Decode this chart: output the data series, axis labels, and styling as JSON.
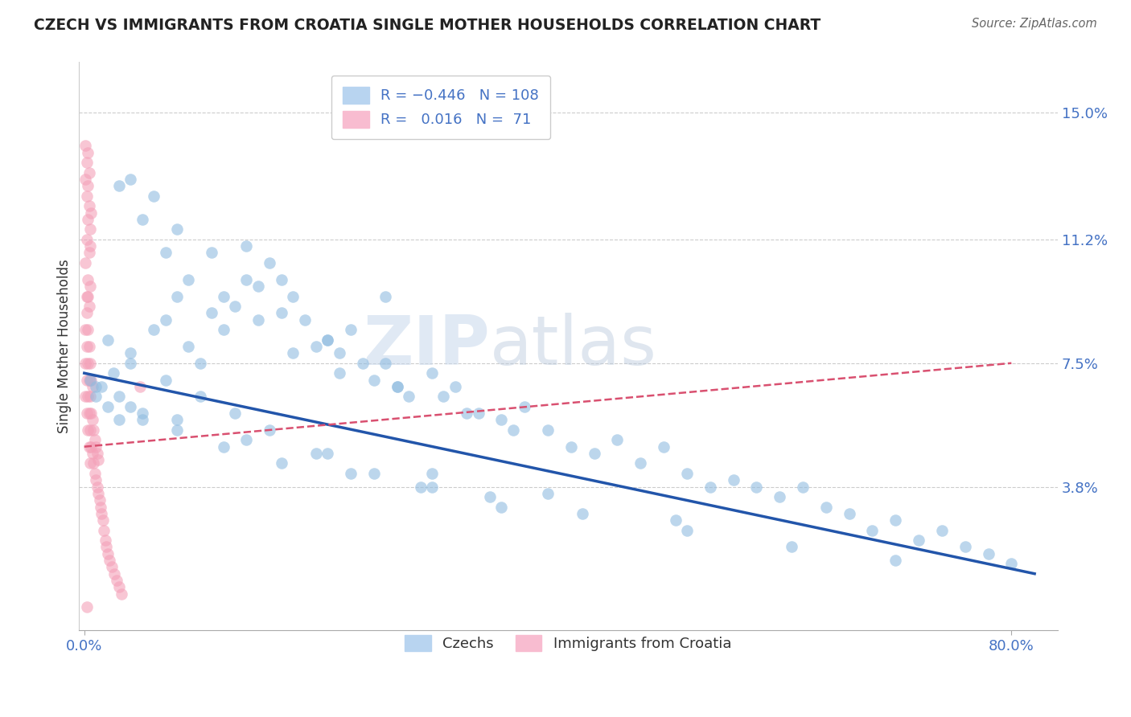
{
  "title": "CZECH VS IMMIGRANTS FROM CROATIA SINGLE MOTHER HOUSEHOLDS CORRELATION CHART",
  "source": "Source: ZipAtlas.com",
  "ylabel": "Single Mother Households",
  "y_ticks": [
    0.038,
    0.075,
    0.112,
    0.15
  ],
  "y_tick_labels": [
    "3.8%",
    "7.5%",
    "11.2%",
    "15.0%"
  ],
  "xlim": [
    -0.005,
    0.84
  ],
  "ylim": [
    -0.005,
    0.165
  ],
  "watermark_zip": "ZIP",
  "watermark_atlas": "atlas",
  "czechs_color": "#90bce0",
  "croatia_color": "#f4a0b8",
  "czechs_line_color": "#2255aa",
  "croatia_line_color": "#d95070",
  "tick_color": "#4472c4",
  "grid_color": "#cccccc",
  "czechs_line_x0": 0.0,
  "czechs_line_x1": 0.82,
  "czechs_line_y0": 0.072,
  "czechs_line_y1": 0.012,
  "croatia_line_x0": 0.0,
  "croatia_line_x1": 0.8,
  "croatia_line_y0": 0.05,
  "croatia_line_y1": 0.075,
  "czechs_x": [
    0.005,
    0.01,
    0.015,
    0.02,
    0.025,
    0.03,
    0.04,
    0.05,
    0.06,
    0.07,
    0.08,
    0.09,
    0.1,
    0.11,
    0.12,
    0.13,
    0.14,
    0.15,
    0.16,
    0.17,
    0.18,
    0.19,
    0.2,
    0.21,
    0.22,
    0.23,
    0.24,
    0.25,
    0.26,
    0.27,
    0.28,
    0.3,
    0.32,
    0.34,
    0.36,
    0.38,
    0.4,
    0.42,
    0.44,
    0.46,
    0.48,
    0.5,
    0.52,
    0.54,
    0.56,
    0.58,
    0.6,
    0.62,
    0.64,
    0.66,
    0.68,
    0.7,
    0.72,
    0.74,
    0.76,
    0.78,
    0.8,
    0.03,
    0.05,
    0.07,
    0.09,
    0.12,
    0.15,
    0.18,
    0.22,
    0.27,
    0.33,
    0.04,
    0.06,
    0.08,
    0.11,
    0.14,
    0.17,
    0.21,
    0.26,
    0.31,
    0.37,
    0.02,
    0.04,
    0.07,
    0.1,
    0.13,
    0.16,
    0.2,
    0.25,
    0.3,
    0.36,
    0.03,
    0.05,
    0.08,
    0.12,
    0.17,
    0.23,
    0.29,
    0.35,
    0.43,
    0.52,
    0.61,
    0.7,
    0.01,
    0.04,
    0.08,
    0.14,
    0.21,
    0.3,
    0.4,
    0.51
  ],
  "czechs_y": [
    0.07,
    0.065,
    0.068,
    0.062,
    0.072,
    0.065,
    0.078,
    0.058,
    0.085,
    0.088,
    0.095,
    0.08,
    0.075,
    0.09,
    0.085,
    0.092,
    0.11,
    0.098,
    0.105,
    0.1,
    0.095,
    0.088,
    0.08,
    0.082,
    0.078,
    0.085,
    0.075,
    0.07,
    0.095,
    0.068,
    0.065,
    0.072,
    0.068,
    0.06,
    0.058,
    0.062,
    0.055,
    0.05,
    0.048,
    0.052,
    0.045,
    0.05,
    0.042,
    0.038,
    0.04,
    0.038,
    0.035,
    0.038,
    0.032,
    0.03,
    0.025,
    0.028,
    0.022,
    0.025,
    0.02,
    0.018,
    0.015,
    0.128,
    0.118,
    0.108,
    0.1,
    0.095,
    0.088,
    0.078,
    0.072,
    0.068,
    0.06,
    0.13,
    0.125,
    0.115,
    0.108,
    0.1,
    0.09,
    0.082,
    0.075,
    0.065,
    0.055,
    0.082,
    0.075,
    0.07,
    0.065,
    0.06,
    0.055,
    0.048,
    0.042,
    0.038,
    0.032,
    0.058,
    0.06,
    0.055,
    0.05,
    0.045,
    0.042,
    0.038,
    0.035,
    0.03,
    0.025,
    0.02,
    0.016,
    0.068,
    0.062,
    0.058,
    0.052,
    0.048,
    0.042,
    0.036,
    0.028
  ],
  "croatia_x": [
    0.001,
    0.001,
    0.001,
    0.002,
    0.002,
    0.002,
    0.002,
    0.003,
    0.003,
    0.003,
    0.003,
    0.003,
    0.004,
    0.004,
    0.004,
    0.004,
    0.005,
    0.005,
    0.005,
    0.005,
    0.006,
    0.006,
    0.006,
    0.007,
    0.007,
    0.007,
    0.008,
    0.008,
    0.009,
    0.009,
    0.01,
    0.01,
    0.011,
    0.011,
    0.012,
    0.012,
    0.013,
    0.014,
    0.015,
    0.016,
    0.017,
    0.018,
    0.019,
    0.02,
    0.022,
    0.024,
    0.026,
    0.028,
    0.03,
    0.032,
    0.001,
    0.002,
    0.002,
    0.003,
    0.003,
    0.004,
    0.004,
    0.005,
    0.005,
    0.006,
    0.001,
    0.001,
    0.002,
    0.002,
    0.003,
    0.003,
    0.004,
    0.004,
    0.005,
    0.048,
    0.002
  ],
  "croatia_y": [
    0.065,
    0.075,
    0.085,
    0.06,
    0.07,
    0.08,
    0.09,
    0.055,
    0.065,
    0.075,
    0.085,
    0.095,
    0.05,
    0.06,
    0.07,
    0.08,
    0.045,
    0.055,
    0.065,
    0.075,
    0.05,
    0.06,
    0.07,
    0.048,
    0.058,
    0.068,
    0.045,
    0.055,
    0.042,
    0.052,
    0.04,
    0.05,
    0.038,
    0.048,
    0.036,
    0.046,
    0.034,
    0.032,
    0.03,
    0.028,
    0.025,
    0.022,
    0.02,
    0.018,
    0.016,
    0.014,
    0.012,
    0.01,
    0.008,
    0.006,
    0.105,
    0.112,
    0.095,
    0.118,
    0.1,
    0.108,
    0.092,
    0.115,
    0.098,
    0.12,
    0.13,
    0.14,
    0.125,
    0.135,
    0.128,
    0.138,
    0.122,
    0.132,
    0.11,
    0.068,
    0.002
  ]
}
